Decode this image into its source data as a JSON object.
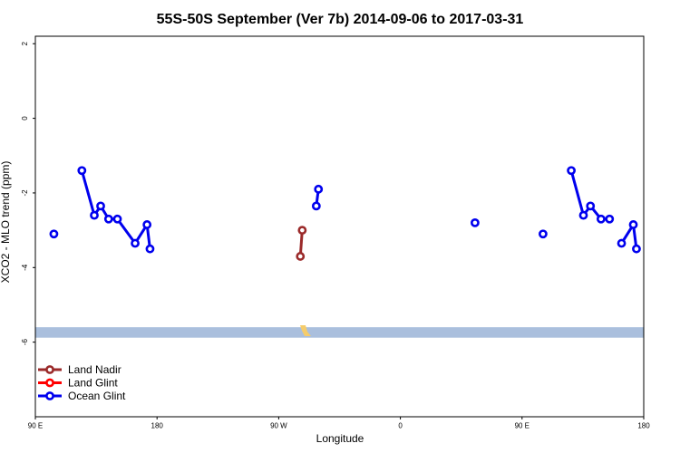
{
  "chart_data": {
    "type": "line",
    "title": "55S-50S September (Ver 7b)   2014-09-06 to 2017-03-31",
    "xlabel": "Longitude",
    "ylabel": "XCO2 - MLO trend (ppm)",
    "xlim": [
      90,
      540
    ],
    "ylim": [
      -8,
      2.2
    ],
    "x_ticks": [
      {
        "value": 90,
        "label": "90 E"
      },
      {
        "value": 180,
        "label": "180"
      },
      {
        "value": 270,
        "label": "90 W"
      },
      {
        "value": 360,
        "label": "0"
      },
      {
        "value": 450,
        "label": "90 E"
      },
      {
        "value": 540,
        "label": "180"
      }
    ],
    "y_ticks": [
      {
        "value": 2,
        "label": "2"
      },
      {
        "value": 0,
        "label": "0"
      },
      {
        "value": -2,
        "label": "-2"
      },
      {
        "value": -4,
        "label": "-4"
      },
      {
        "value": -6,
        "label": "-6"
      }
    ],
    "grid": false,
    "legend_position": "bottom-left",
    "background_band": {
      "y_range": [
        -5.88,
        -5.6
      ],
      "color": "#aabfdd",
      "land_color": "#f5cc6b"
    },
    "series": [
      {
        "name": "Land Nadir",
        "color": "#9b2a2a",
        "segments": [
          [
            [
              286,
              -3.7
            ],
            [
              287.4,
              -3.0
            ]
          ]
        ]
      },
      {
        "name": "Land Glint",
        "color": "#ff0000",
        "segments": []
      },
      {
        "name": "Ocean Glint",
        "color": "#0000ee",
        "segments": [
          [
            [
              103.7,
              -3.1
            ]
          ],
          [
            [
              124.4,
              -1.4
            ],
            [
              133.6,
              -2.6
            ],
            [
              138.3,
              -2.35
            ],
            [
              144.2,
              -2.7
            ],
            [
              150.7,
              -2.7
            ],
            [
              163.8,
              -3.35
            ],
            [
              172.6,
              -2.85
            ],
            [
              174.8,
              -3.5
            ]
          ],
          [
            [
              297.8,
              -2.35
            ],
            [
              299.4,
              -1.9
            ]
          ],
          [
            [
              415.2,
              -2.8
            ]
          ],
          [
            [
              465.5,
              -3.1
            ]
          ],
          [
            [
              486.4,
              -1.4
            ],
            [
              495.4,
              -2.6
            ],
            [
              500.6,
              -2.35
            ],
            [
              508.4,
              -2.7
            ],
            [
              514.7,
              -2.7
            ]
          ],
          [
            [
              523.6,
              -3.35
            ],
            [
              532.3,
              -2.85
            ],
            [
              534.6,
              -3.5
            ]
          ]
        ]
      }
    ]
  }
}
